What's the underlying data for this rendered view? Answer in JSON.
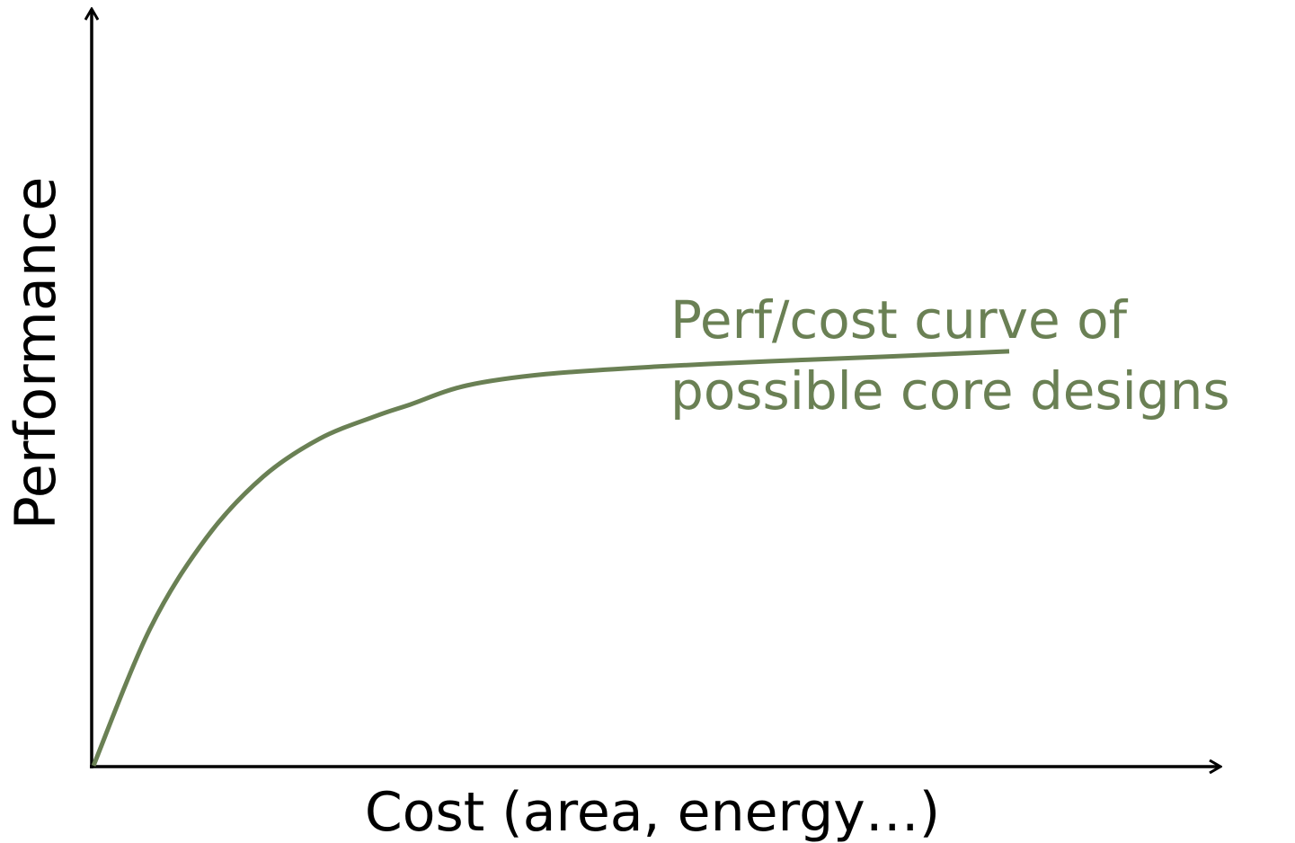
{
  "chart_data": {
    "type": "line",
    "xlabel": "Cost (area, energy…)",
    "ylabel": "Performance",
    "xlim": [
      0,
      100
    ],
    "ylim": [
      0,
      100
    ],
    "grid": false,
    "series": [
      {
        "name": "",
        "color": "#6a8054",
        "x": [
          0,
          5,
          10,
          15,
          20,
          25,
          28,
          33,
          40,
          50,
          60,
          70,
          81
        ],
        "y": [
          0,
          18,
          30,
          38,
          43,
          46,
          47.5,
          50,
          51.5,
          52.5,
          53.2,
          53.8,
          54.5
        ]
      }
    ],
    "annotations": [
      {
        "lines": [
          "Perf/cost curve of",
          "possible core designs"
        ],
        "color": "#6a8054"
      }
    ],
    "axis_color": "#000000"
  }
}
